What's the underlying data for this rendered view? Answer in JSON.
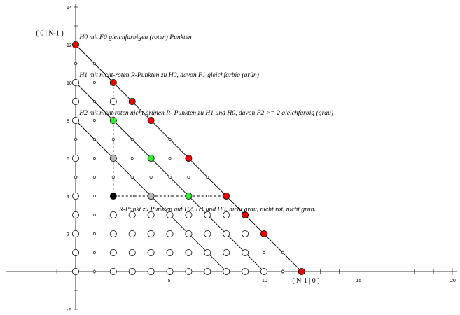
{
  "chart_data": {
    "type": "scatter",
    "x_axis": {
      "range": [
        -1,
        21
      ],
      "ticks": [
        5,
        10,
        15,
        20
      ]
    },
    "y_axis": {
      "range": [
        -2,
        14
      ],
      "ticks": [
        -2,
        2,
        4,
        6,
        8,
        10,
        12,
        14
      ]
    },
    "grid": false,
    "colors": {
      "red": "#e60000",
      "green": "#33ee33",
      "gray": "#b8b8b8",
      "black": "#000000",
      "white": "#ffffff"
    },
    "lines": [
      {
        "from": [
          0,
          12
        ],
        "to": [
          12,
          0
        ]
      },
      {
        "from": [
          0,
          10
        ],
        "to": [
          10,
          0
        ]
      },
      {
        "from": [
          0,
          8
        ],
        "to": [
          8,
          0
        ]
      }
    ],
    "dashed": [
      {
        "from": [
          2,
          10
        ],
        "to": [
          2,
          4
        ]
      },
      {
        "from": [
          2,
          4
        ],
        "to": [
          8,
          4
        ]
      }
    ],
    "points": [
      {
        "x": 0,
        "y": 12,
        "color": "red"
      },
      {
        "x": 2,
        "y": 10,
        "color": "red"
      },
      {
        "x": 3,
        "y": 9,
        "color": "red"
      },
      {
        "x": 4,
        "y": 8,
        "color": "red"
      },
      {
        "x": 6,
        "y": 6,
        "color": "red"
      },
      {
        "x": 8,
        "y": 4,
        "color": "red"
      },
      {
        "x": 9,
        "y": 3,
        "color": "red"
      },
      {
        "x": 10,
        "y": 2,
        "color": "red"
      },
      {
        "x": 12,
        "y": 0,
        "color": "red"
      },
      {
        "x": 2,
        "y": 8,
        "color": "green"
      },
      {
        "x": 4,
        "y": 6,
        "color": "green"
      },
      {
        "x": 6,
        "y": 4,
        "color": "green"
      },
      {
        "x": 2,
        "y": 6,
        "color": "gray"
      },
      {
        "x": 4,
        "y": 4,
        "color": "gray"
      },
      {
        "x": 2,
        "y": 4,
        "color": "black"
      }
    ],
    "open_points": [
      {
        "x": 0,
        "y": 10
      },
      {
        "x": 0,
        "y": 9
      },
      {
        "x": 0,
        "y": 8
      },
      {
        "x": 0,
        "y": 6
      },
      {
        "x": 0,
        "y": 4
      },
      {
        "x": 0,
        "y": 3
      },
      {
        "x": 0,
        "y": 2
      },
      {
        "x": 0,
        "y": 1
      },
      {
        "x": 0,
        "y": 0
      },
      {
        "x": 2,
        "y": 9
      },
      {
        "x": 2,
        "y": 3
      },
      {
        "x": 2,
        "y": 2
      },
      {
        "x": 2,
        "y": 1
      },
      {
        "x": 2,
        "y": 0
      },
      {
        "x": 3,
        "y": 3
      },
      {
        "x": 3,
        "y": 2
      },
      {
        "x": 3,
        "y": 1
      },
      {
        "x": 3,
        "y": 0
      },
      {
        "x": 4,
        "y": 3
      },
      {
        "x": 4,
        "y": 2
      },
      {
        "x": 4,
        "y": 1
      },
      {
        "x": 4,
        "y": 0
      },
      {
        "x": 5,
        "y": 3
      },
      {
        "x": 5,
        "y": 2
      },
      {
        "x": 5,
        "y": 1
      },
      {
        "x": 5,
        "y": 0
      },
      {
        "x": 6,
        "y": 3
      },
      {
        "x": 6,
        "y": 2
      },
      {
        "x": 6,
        "y": 1
      },
      {
        "x": 6,
        "y": 0
      },
      {
        "x": 7,
        "y": 3
      },
      {
        "x": 7,
        "y": 2
      },
      {
        "x": 7,
        "y": 1
      },
      {
        "x": 7,
        "y": 0
      },
      {
        "x": 8,
        "y": 3
      },
      {
        "x": 8,
        "y": 2
      },
      {
        "x": 8,
        "y": 1
      },
      {
        "x": 8,
        "y": 0
      },
      {
        "x": 9,
        "y": 2
      },
      {
        "x": 9,
        "y": 1
      },
      {
        "x": 9,
        "y": 0
      },
      {
        "x": 10,
        "y": 0
      }
    ],
    "small_points": [
      {
        "x": 0,
        "y": 11
      },
      {
        "x": 0,
        "y": 7
      },
      {
        "x": 0,
        "y": 5
      },
      {
        "x": 1,
        "y": 11
      },
      {
        "x": 1,
        "y": 10
      },
      {
        "x": 1,
        "y": 9
      },
      {
        "x": 1,
        "y": 8
      },
      {
        "x": 1,
        "y": 7
      },
      {
        "x": 1,
        "y": 6
      },
      {
        "x": 1,
        "y": 5
      },
      {
        "x": 1,
        "y": 4
      },
      {
        "x": 1,
        "y": 3
      },
      {
        "x": 1,
        "y": 2
      },
      {
        "x": 1,
        "y": 1
      },
      {
        "x": 1,
        "y": 0
      },
      {
        "x": 2,
        "y": 7
      },
      {
        "x": 2,
        "y": 5
      },
      {
        "x": 3,
        "y": 7
      },
      {
        "x": 3,
        "y": 6
      },
      {
        "x": 3,
        "y": 5
      },
      {
        "x": 3,
        "y": 4
      },
      {
        "x": 4,
        "y": 5
      },
      {
        "x": 5,
        "y": 7
      },
      {
        "x": 5,
        "y": 6
      },
      {
        "x": 5,
        "y": 5
      },
      {
        "x": 5,
        "y": 4
      },
      {
        "x": 6,
        "y": 5
      },
      {
        "x": 7,
        "y": 5
      },
      {
        "x": 7,
        "y": 4
      },
      {
        "x": 9,
        "y": 1
      },
      {
        "x": 10,
        "y": 1
      },
      {
        "x": 11,
        "y": 1
      },
      {
        "x": 11,
        "y": 0
      }
    ],
    "annotations": [
      {
        "text": "H0  mit F0 gleichfarbigen (roten) Punkten",
        "x": 0.2,
        "y": 12.3
      },
      {
        "text": "H1 mit nicht-roten R-Punkten zu H0, davon  F1 gleichfarbig (grün)",
        "x": 0.2,
        "y": 10.3
      },
      {
        "text": "H2 mit nicht roten nicht grünen R- Punkten zu H1 und H0, davon  F2 >= 2 gleichfarbig (grau)",
        "x": 0.2,
        "y": 8.3
      },
      {
        "text": "R-Punkt zu Punkten auf H2, H1 und H0, nicht grau, nicht rot, nicht grün.",
        "x": 2.3,
        "y": 3.2
      }
    ],
    "corner_labels": [
      {
        "text": "( 0 | N-1 )",
        "x": -2.1,
        "y": 12.5
      },
      {
        "text": "( N-1 | 0 )",
        "x": 11.5,
        "y": -0.6
      }
    ]
  }
}
